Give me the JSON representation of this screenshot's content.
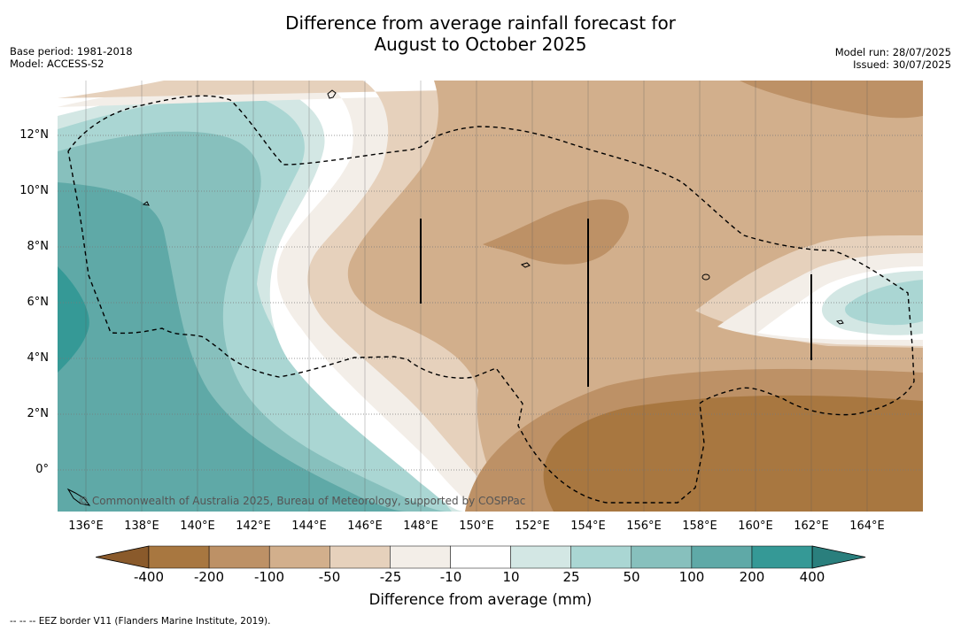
{
  "title": {
    "line1": "Difference from average rainfall forecast for",
    "line2": "August to October 2025"
  },
  "meta_left": {
    "base_period": "Base period: 1981-2018",
    "model": "Model: ACCESS-S2"
  },
  "meta_right": {
    "model_run": "Model run: 28/07/2025",
    "issued": "Issued: 30/07/2025"
  },
  "map": {
    "lat_labels": [
      "12°N",
      "10°N",
      "8°N",
      "6°N",
      "4°N",
      "2°N",
      "0°"
    ],
    "lon_labels": [
      "136°E",
      "138°E",
      "140°E",
      "142°E",
      "144°E",
      "146°E",
      "148°E",
      "150°E",
      "152°E",
      "154°E",
      "156°E",
      "158°E",
      "160°E",
      "162°E",
      "164°E"
    ],
    "copyright": "© Commonwealth of Australia 2025, Bureau of Meteorology, supported by COSPPac",
    "border_style": "dashed black",
    "gridlines": true
  },
  "colorbar": {
    "labels": [
      "-400",
      "-200",
      "-100",
      "-50",
      "-25",
      "-10",
      "10",
      "25",
      "50",
      "100",
      "200",
      "400"
    ],
    "colors": [
      "#a87740",
      "#bd9166",
      "#d2af8c",
      "#e6d1bc",
      "#f3eee8",
      "#ffffff",
      "#d3e7e4",
      "#aad6d3",
      "#87c0bd",
      "#5fa9a7",
      "#359996",
      "#2a7f7d"
    ],
    "title": "Difference from average (mm)"
  },
  "footnote": "--  --  -- EEZ border V11 (Flanders Marine Institute, 2019)."
}
